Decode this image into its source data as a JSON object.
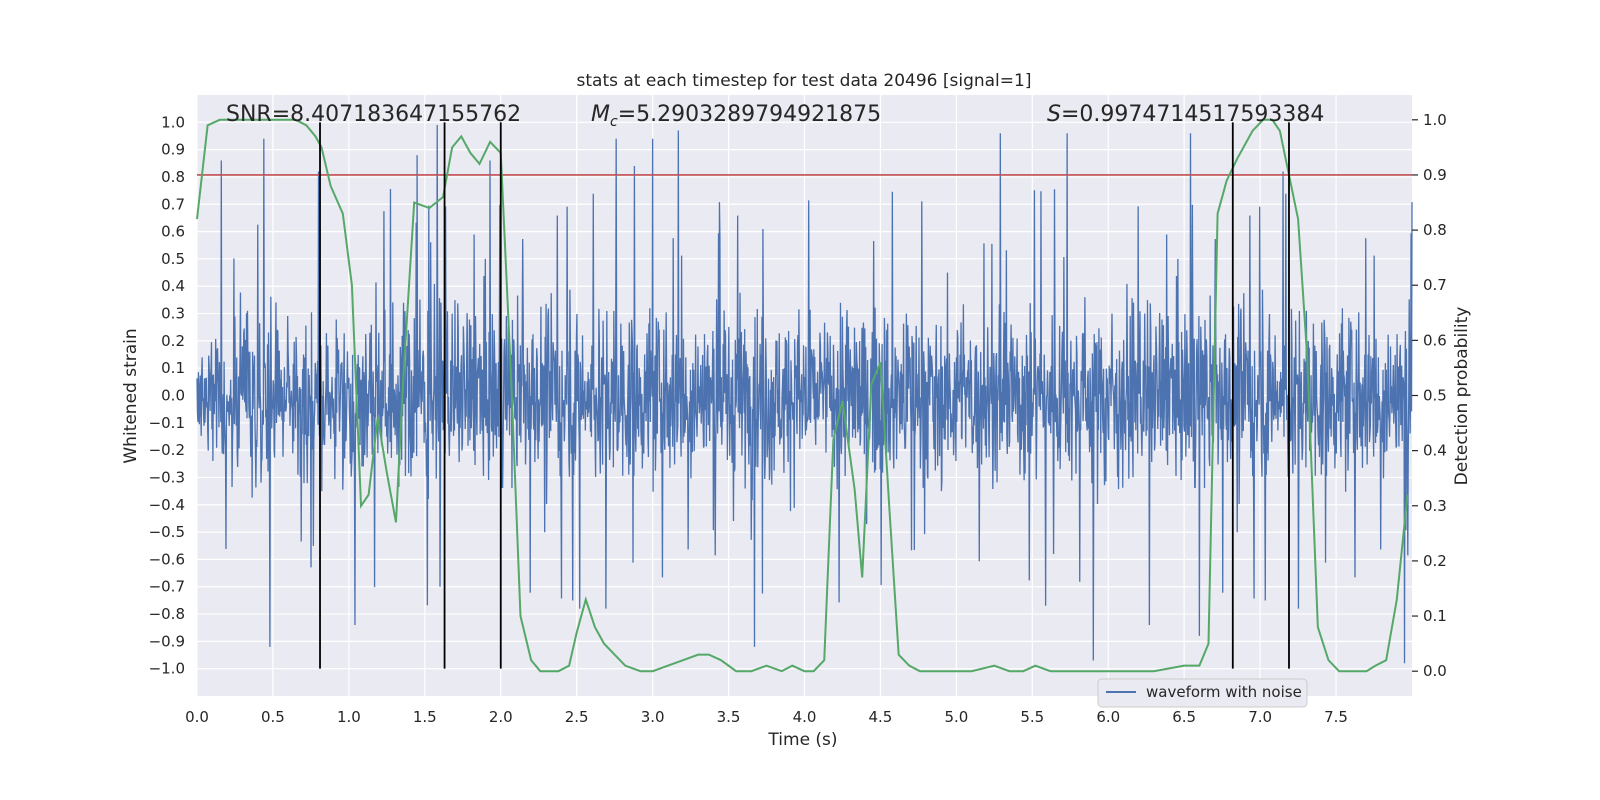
{
  "chart_data": {
    "type": "line",
    "title": "stats at each timestep for test data 20496 [signal=1]",
    "xlabel": "Time (s)",
    "ylabel": "Whitened strain",
    "y2label": "Detection probability",
    "xlim": [
      0,
      8.0
    ],
    "ylim": [
      -1.1,
      1.1
    ],
    "y2lim": [
      -0.045,
      1.045
    ],
    "x_ticks": [
      "0.0",
      "0.5",
      "1.0",
      "1.5",
      "2.0",
      "2.5",
      "3.0",
      "3.5",
      "4.0",
      "4.5",
      "5.0",
      "5.5",
      "6.0",
      "6.5",
      "7.0",
      "7.5"
    ],
    "y_ticks": [
      "1.0",
      "0.9",
      "0.8",
      "0.7",
      "0.6",
      "0.5",
      "0.4",
      "0.3",
      "0.2",
      "0.1",
      "0.0",
      "−0.1",
      "−0.2",
      "−0.3",
      "−0.4",
      "−0.5",
      "−0.6",
      "−0.7",
      "−0.8",
      "−0.9",
      "−1.0"
    ],
    "y2_ticks": [
      "1.0",
      "0.9",
      "0.8",
      "0.7",
      "0.6",
      "0.5",
      "0.4",
      "0.3",
      "0.2",
      "0.1",
      "0.0"
    ],
    "grid": true,
    "legend_position": "bottom-right",
    "annotations": {
      "snr": "SNR=8.407183647155762",
      "mc_prefix": "M",
      "mc_sub": "c",
      "mc_value": "=5.2903289794921875",
      "s_prefix": "S",
      "s_value": "=0.9974714517593384"
    },
    "series": [
      {
        "name": "waveform with noise",
        "color": "#4c72b0",
        "description": "dense noisy whitened strain, mostly within ±0.5 with spikes to about ±0.95",
        "envelope_peaks": [
          {
            "x": 0.16,
            "y": 0.86
          },
          {
            "x": 0.44,
            "y": 0.94
          },
          {
            "x": 0.48,
            "y": -0.92
          },
          {
            "x": 0.8,
            "y": 0.82
          },
          {
            "x": 1.04,
            "y": -0.84
          },
          {
            "x": 1.45,
            "y": 0.88
          },
          {
            "x": 1.58,
            "y": 0.99
          },
          {
            "x": 1.6,
            "y": -0.7
          },
          {
            "x": 1.93,
            "y": 0.86
          },
          {
            "x": 2.52,
            "y": -0.78
          },
          {
            "x": 2.76,
            "y": 0.94
          },
          {
            "x": 2.88,
            "y": 0.84
          },
          {
            "x": 3.0,
            "y": 0.94
          },
          {
            "x": 3.17,
            "y": 0.97
          },
          {
            "x": 3.67,
            "y": -0.92
          },
          {
            "x": 5.29,
            "y": 0.96
          },
          {
            "x": 5.73,
            "y": 0.96
          },
          {
            "x": 5.9,
            "y": -0.97
          },
          {
            "x": 6.27,
            "y": -0.84
          },
          {
            "x": 6.54,
            "y": 0.96
          },
          {
            "x": 6.6,
            "y": -0.88
          },
          {
            "x": 7.15,
            "y": 0.82
          },
          {
            "x": 7.95,
            "y": -0.98
          }
        ]
      },
      {
        "name": "",
        "color": "#55a868",
        "axis": "right",
        "x": [
          0.0,
          0.07,
          0.15,
          0.25,
          0.35,
          0.45,
          0.55,
          0.65,
          0.72,
          0.78,
          0.82,
          0.88,
          0.96,
          1.02,
          1.08,
          1.13,
          1.19,
          1.25,
          1.31,
          1.36,
          1.43,
          1.53,
          1.62,
          1.68,
          1.74,
          1.8,
          1.86,
          1.93,
          2.0,
          2.07,
          2.13,
          2.2,
          2.26,
          2.32,
          2.38,
          2.45,
          2.5,
          2.56,
          2.62,
          2.68,
          2.75,
          2.82,
          2.92,
          3.0,
          3.1,
          3.2,
          3.3,
          3.37,
          3.45,
          3.55,
          3.65,
          3.75,
          3.85,
          3.92,
          4.0,
          4.06,
          4.13,
          4.19,
          4.25,
          4.33,
          4.38,
          4.44,
          4.5,
          4.56,
          4.62,
          4.69,
          4.76,
          4.85,
          4.95,
          5.1,
          5.25,
          5.35,
          5.44,
          5.52,
          5.62,
          5.7,
          5.76,
          5.85,
          5.95,
          6.1,
          6.3,
          6.5,
          6.6,
          6.66,
          6.72,
          6.78,
          6.85,
          6.95,
          7.02,
          7.08,
          7.13,
          7.19,
          7.25,
          7.31,
          7.38,
          7.45,
          7.52,
          7.6,
          7.7,
          7.76,
          7.83,
          7.9,
          7.97
        ],
        "y": [
          0.82,
          0.99,
          1.0,
          1.0,
          1.0,
          1.0,
          1.0,
          1.0,
          0.99,
          0.97,
          0.95,
          0.88,
          0.83,
          0.7,
          0.3,
          0.32,
          0.46,
          0.36,
          0.27,
          0.54,
          0.85,
          0.84,
          0.86,
          0.95,
          0.97,
          0.94,
          0.92,
          0.96,
          0.94,
          0.52,
          0.1,
          0.02,
          0.0,
          0.0,
          0.0,
          0.01,
          0.07,
          0.13,
          0.08,
          0.05,
          0.03,
          0.01,
          0.0,
          0.0,
          0.01,
          0.02,
          0.03,
          0.03,
          0.02,
          0.0,
          0.0,
          0.01,
          0.0,
          0.01,
          0.0,
          0.0,
          0.02,
          0.42,
          0.49,
          0.33,
          0.17,
          0.52,
          0.56,
          0.29,
          0.03,
          0.01,
          0.0,
          0.0,
          0.0,
          0.0,
          0.01,
          0.0,
          0.0,
          0.01,
          0.0,
          0.0,
          0.0,
          0.0,
          0.0,
          0.0,
          0.0,
          0.01,
          0.01,
          0.05,
          0.83,
          0.89,
          0.93,
          0.98,
          1.0,
          1.0,
          0.98,
          0.9,
          0.82,
          0.57,
          0.08,
          0.02,
          0.0,
          0.0,
          0.0,
          0.01,
          0.02,
          0.13,
          0.32
        ]
      },
      {
        "name": "",
        "color": "#c44e52",
        "type": "hline",
        "axis": "right",
        "y": 0.9
      },
      {
        "name": "",
        "color": "#000000",
        "type": "vlines",
        "x": [
          0.81,
          1.63,
          2.0,
          6.82,
          7.19
        ],
        "y_from": -1.0,
        "y_to": 1.0
      }
    ]
  }
}
